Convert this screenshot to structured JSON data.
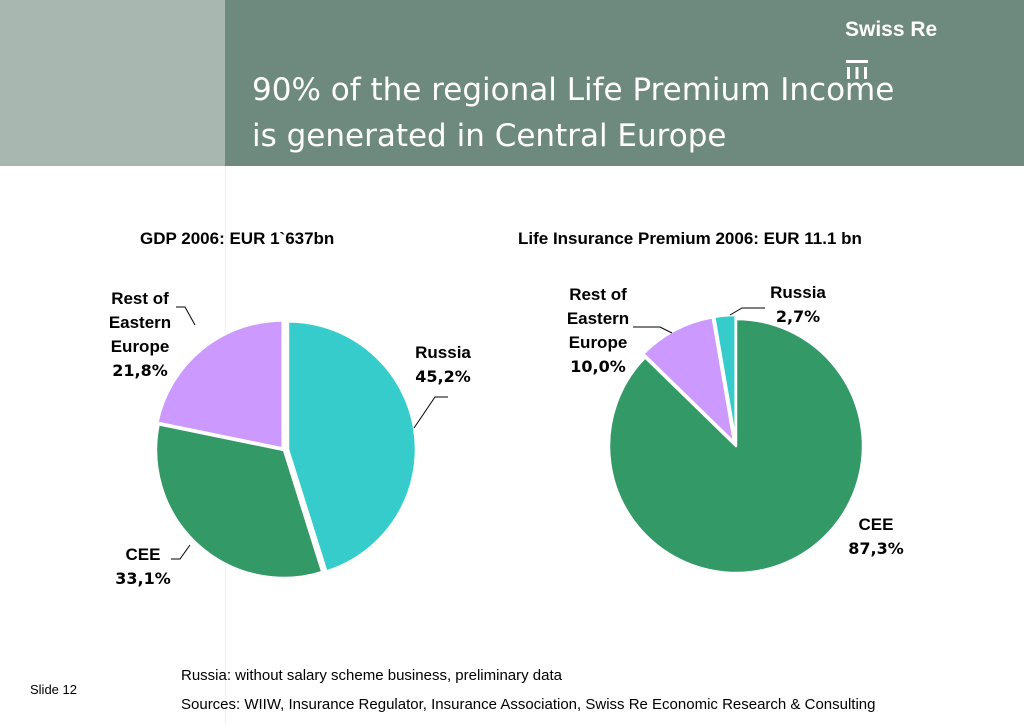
{
  "header": {
    "title_line1": "90% of the regional Life Premium Income",
    "title_line2": "is generated in Central Europe",
    "logo_text": "Swiss Re",
    "logo_icon": "swiss-re-logo-mark"
  },
  "chart_data": [
    {
      "type": "pie",
      "title": "GDP 2006: EUR 1`637bn",
      "slices": [
        {
          "label": "Russia",
          "value": 45.2,
          "value_text": "45,2%",
          "color": "#36cccc"
        },
        {
          "label": "CEE",
          "value": 33.1,
          "value_text": "33,1%",
          "color": "#339966"
        },
        {
          "label": "Rest of Eastern Europe",
          "label_lines": [
            "Rest of",
            "Eastern",
            "Europe"
          ],
          "value": 21.8,
          "value_text": "21,8%",
          "color": "#cc99ff"
        }
      ],
      "start": "12 o'clock, clockwise",
      "legend": "none (data labels with leader lines)"
    },
    {
      "type": "pie",
      "title": "Life Insurance Premium 2006: EUR 11.1 bn",
      "slices": [
        {
          "label": "CEE",
          "value": 87.3,
          "value_text": "87,3%",
          "color": "#339966"
        },
        {
          "label": "Rest of Eastern Europe",
          "label_lines": [
            "Rest of",
            "Eastern",
            "Europe"
          ],
          "value": 10.0,
          "value_text": "10,0%",
          "color": "#cc99ff"
        },
        {
          "label": "Russia",
          "value": 2.7,
          "value_text": "2,7%",
          "color": "#36cccc"
        }
      ],
      "start": "12 o'clock, clockwise",
      "legend": "none (data labels with leader lines)"
    }
  ],
  "footer": {
    "slide_number": "Slide 12",
    "note": "Russia: without salary scheme business, preliminary data",
    "sources": "Sources: WIIW, Insurance Regulator, Insurance Association, Swiss Re Economic Research & Consulting"
  }
}
